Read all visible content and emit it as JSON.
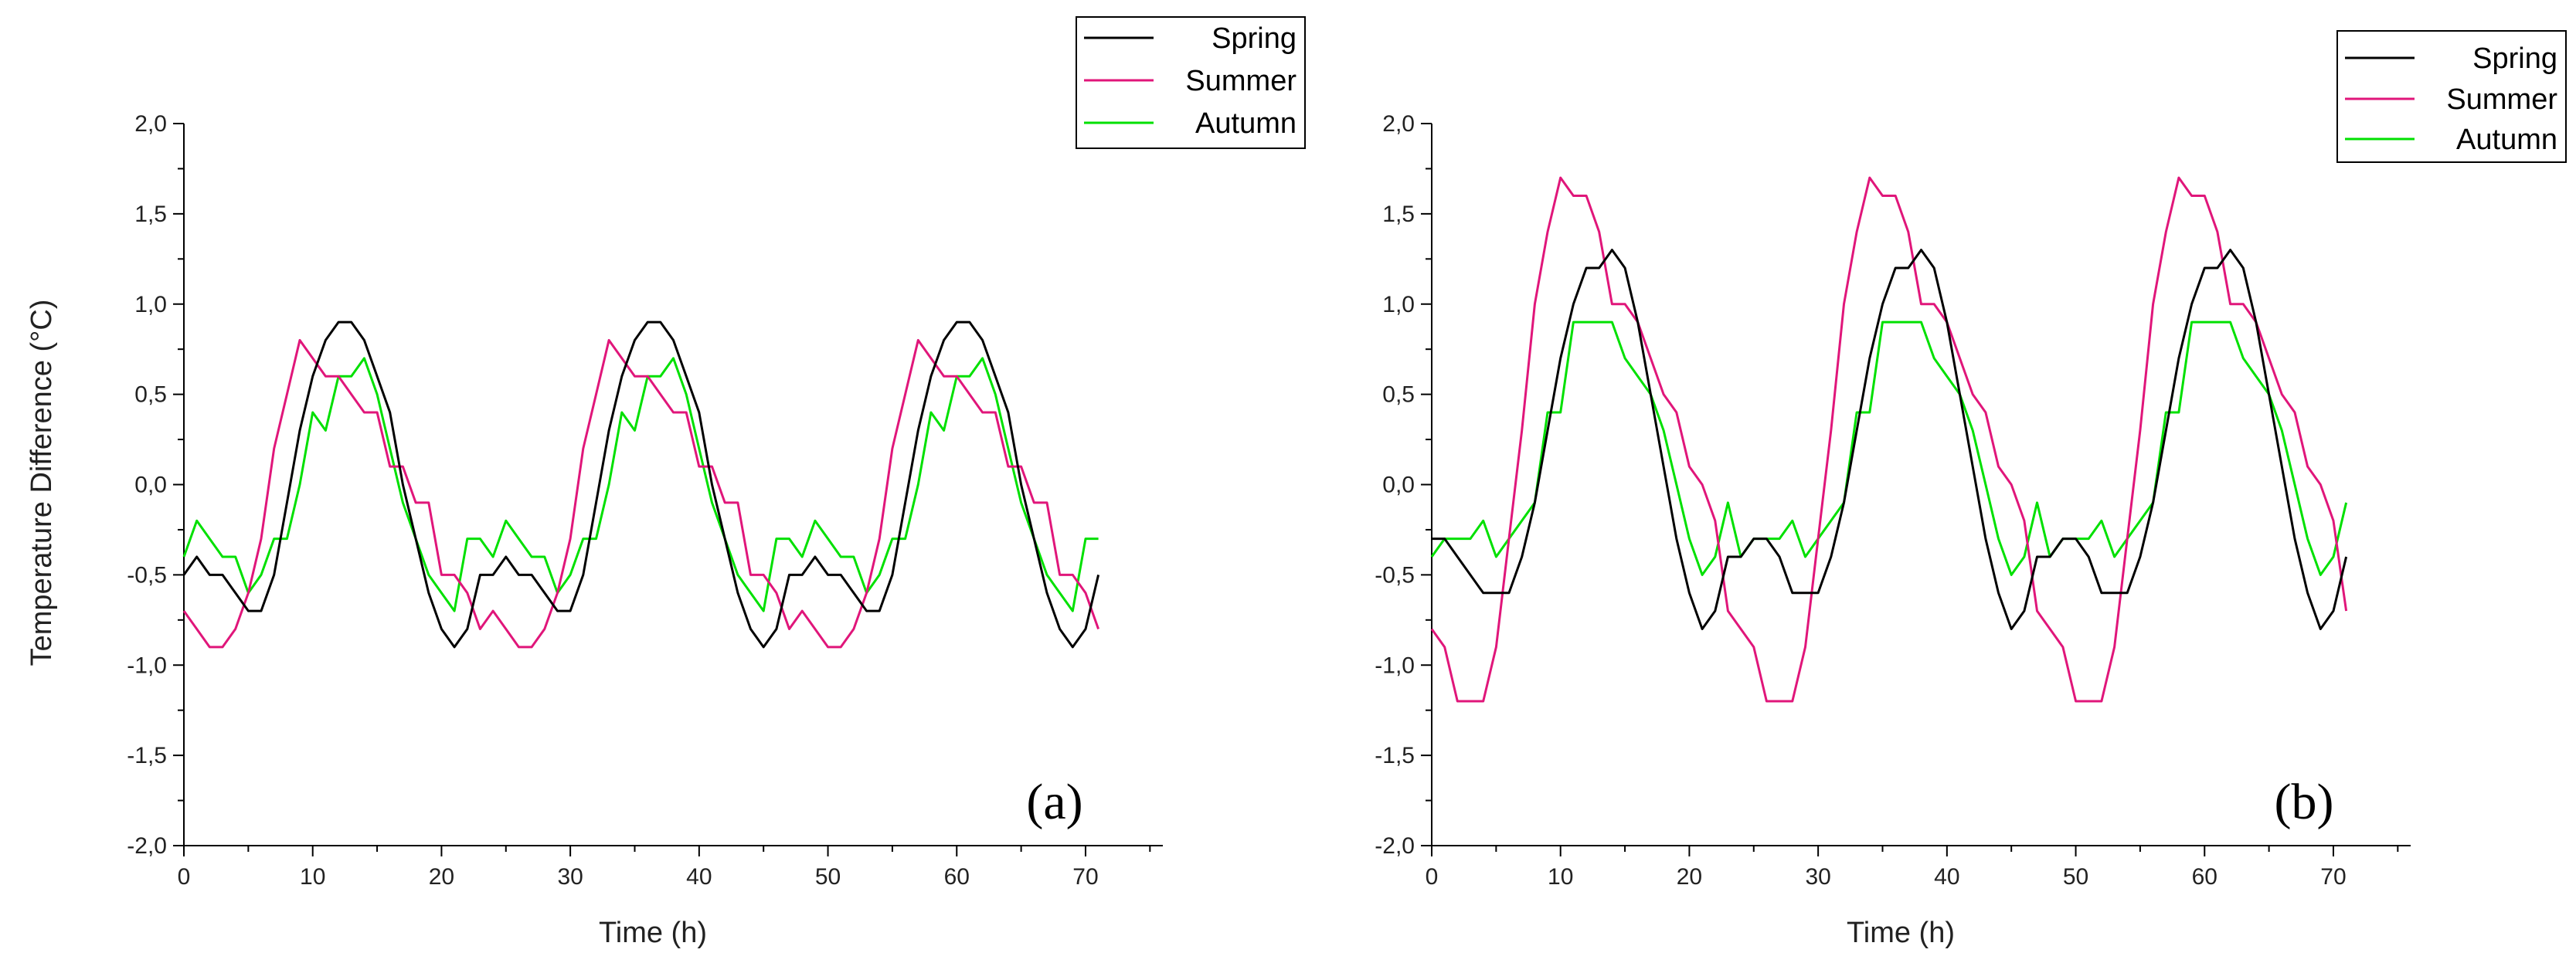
{
  "colors": {
    "spring": "#000000",
    "summer": "#e0167a",
    "autumn": "#00e000",
    "axis": "#000000"
  },
  "chart_data": [
    {
      "type": "line",
      "panel_label": "(a)",
      "xlabel": "Time (h)",
      "ylabel": "Temperature Difference (°C)",
      "xlim": [
        0,
        76
      ],
      "ylim": [
        -2.0,
        2.0
      ],
      "x_ticks": [
        0,
        10,
        20,
        30,
        40,
        50,
        60,
        70
      ],
      "x_tick_labels": [
        "0",
        "10",
        "20",
        "30",
        "40",
        "50",
        "60",
        "70"
      ],
      "y_ticks": [
        -2.0,
        -1.5,
        -1.0,
        -0.5,
        0.0,
        0.5,
        1.0,
        1.5,
        2.0
      ],
      "y_tick_labels": [
        "-2,0",
        "-1,5",
        "-1,0",
        "-0,5",
        "0,0",
        "0,5",
        "1,0",
        "1,5",
        "2,0"
      ],
      "legend": [
        "Spring",
        "Summer",
        "Autumn"
      ],
      "x": [
        0,
        1,
        2,
        3,
        4,
        5,
        6,
        7,
        8,
        9,
        10,
        11,
        12,
        13,
        14,
        15,
        16,
        17,
        18,
        19,
        20,
        21,
        22,
        23,
        24,
        25,
        26,
        27,
        28,
        29,
        30,
        31,
        32,
        33,
        34,
        35,
        36,
        37,
        38,
        39,
        40,
        41,
        42,
        43,
        44,
        45,
        46,
        47,
        48,
        49,
        50,
        51,
        52,
        53,
        54,
        55,
        56,
        57,
        58,
        59,
        60,
        61,
        62,
        63,
        64,
        65,
        66,
        67,
        68,
        69,
        70,
        71
      ],
      "series": [
        {
          "name": "Spring",
          "key": "spring",
          "values": [
            -0.5,
            -0.4,
            -0.5,
            -0.5,
            -0.6,
            -0.7,
            -0.7,
            -0.5,
            -0.1,
            0.3,
            0.6,
            0.8,
            0.9,
            0.9,
            0.8,
            0.6,
            0.4,
            0.0,
            -0.3,
            -0.6,
            -0.8,
            -0.9,
            -0.8,
            -0.5,
            -0.5,
            -0.4,
            -0.5,
            -0.5,
            -0.6,
            -0.7,
            -0.7,
            -0.5,
            -0.1,
            0.3,
            0.6,
            0.8,
            0.9,
            0.9,
            0.8,
            0.6,
            0.4,
            0.0,
            -0.3,
            -0.6,
            -0.8,
            -0.9,
            -0.8,
            -0.5,
            -0.5,
            -0.4,
            -0.5,
            -0.5,
            -0.6,
            -0.7,
            -0.7,
            -0.5,
            -0.1,
            0.3,
            0.6,
            0.8,
            0.9,
            0.9,
            0.8,
            0.6,
            0.4,
            0.0,
            -0.3,
            -0.6,
            -0.8,
            -0.9,
            -0.8,
            -0.5
          ]
        },
        {
          "name": "Summer",
          "key": "summer",
          "values": [
            -0.7,
            -0.8,
            -0.9,
            -0.9,
            -0.8,
            -0.6,
            -0.3,
            0.2,
            0.5,
            0.8,
            0.7,
            0.6,
            0.6,
            0.5,
            0.4,
            0.4,
            0.1,
            0.1,
            -0.1,
            -0.1,
            -0.5,
            -0.5,
            -0.6,
            -0.8,
            -0.7,
            -0.8,
            -0.9,
            -0.9,
            -0.8,
            -0.6,
            -0.3,
            0.2,
            0.5,
            0.8,
            0.7,
            0.6,
            0.6,
            0.5,
            0.4,
            0.4,
            0.1,
            0.1,
            -0.1,
            -0.1,
            -0.5,
            -0.5,
            -0.6,
            -0.8,
            -0.7,
            -0.8,
            -0.9,
            -0.9,
            -0.8,
            -0.6,
            -0.3,
            0.2,
            0.5,
            0.8,
            0.7,
            0.6,
            0.6,
            0.5,
            0.4,
            0.4,
            0.1,
            0.1,
            -0.1,
            -0.1,
            -0.5,
            -0.5,
            -0.6,
            -0.8
          ]
        },
        {
          "name": "Autumn",
          "key": "autumn",
          "values": [
            -0.4,
            -0.2,
            -0.3,
            -0.4,
            -0.4,
            -0.6,
            -0.5,
            -0.3,
            -0.3,
            0.0,
            0.4,
            0.3,
            0.6,
            0.6,
            0.7,
            0.5,
            0.2,
            -0.1,
            -0.3,
            -0.5,
            -0.6,
            -0.7,
            -0.3,
            -0.3,
            -0.4,
            -0.2,
            -0.3,
            -0.4,
            -0.4,
            -0.6,
            -0.5,
            -0.3,
            -0.3,
            0.0,
            0.4,
            0.3,
            0.6,
            0.6,
            0.7,
            0.5,
            0.2,
            -0.1,
            -0.3,
            -0.5,
            -0.6,
            -0.7,
            -0.3,
            -0.3,
            -0.4,
            -0.2,
            -0.3,
            -0.4,
            -0.4,
            -0.6,
            -0.5,
            -0.3,
            -0.3,
            0.0,
            0.4,
            0.3,
            0.6,
            0.6,
            0.7,
            0.5,
            0.2,
            -0.1,
            -0.3,
            -0.5,
            -0.6,
            -0.7,
            -0.3,
            -0.3
          ]
        }
      ]
    },
    {
      "type": "line",
      "panel_label": "(b)",
      "xlabel": "Time (h)",
      "ylabel": "",
      "xlim": [
        0,
        76
      ],
      "ylim": [
        -2.0,
        2.0
      ],
      "x_ticks": [
        0,
        10,
        20,
        30,
        40,
        50,
        60,
        70
      ],
      "x_tick_labels": [
        "0",
        "10",
        "20",
        "30",
        "40",
        "50",
        "60",
        "70"
      ],
      "y_ticks": [
        -2.0,
        -1.5,
        -1.0,
        -0.5,
        0.0,
        0.5,
        1.0,
        1.5,
        2.0
      ],
      "y_tick_labels": [
        "-2,0",
        "-1,5",
        "-1,0",
        "-0,5",
        "0,0",
        "0,5",
        "1,0",
        "1,5",
        "2,0"
      ],
      "legend": [
        "Spring",
        "Summer",
        "Autumn"
      ],
      "x": [
        0,
        1,
        2,
        3,
        4,
        5,
        6,
        7,
        8,
        9,
        10,
        11,
        12,
        13,
        14,
        15,
        16,
        17,
        18,
        19,
        20,
        21,
        22,
        23,
        24,
        25,
        26,
        27,
        28,
        29,
        30,
        31,
        32,
        33,
        34,
        35,
        36,
        37,
        38,
        39,
        40,
        41,
        42,
        43,
        44,
        45,
        46,
        47,
        48,
        49,
        50,
        51,
        52,
        53,
        54,
        55,
        56,
        57,
        58,
        59,
        60,
        61,
        62,
        63,
        64,
        65,
        66,
        67,
        68,
        69,
        70,
        71
      ],
      "series": [
        {
          "name": "Spring",
          "key": "spring",
          "values": [
            -0.3,
            -0.3,
            -0.4,
            -0.5,
            -0.6,
            -0.6,
            -0.6,
            -0.4,
            -0.1,
            0.3,
            0.7,
            1.0,
            1.2,
            1.2,
            1.3,
            1.2,
            0.9,
            0.5,
            0.1,
            -0.3,
            -0.6,
            -0.8,
            -0.7,
            -0.4,
            -0.4,
            -0.3,
            -0.3,
            -0.4,
            -0.6,
            -0.6,
            -0.6,
            -0.4,
            -0.1,
            0.3,
            0.7,
            1.0,
            1.2,
            1.2,
            1.3,
            1.2,
            0.9,
            0.5,
            0.1,
            -0.3,
            -0.6,
            -0.8,
            -0.7,
            -0.4,
            -0.4,
            -0.3,
            -0.3,
            -0.4,
            -0.6,
            -0.6,
            -0.6,
            -0.4,
            -0.1,
            0.3,
            0.7,
            1.0,
            1.2,
            1.2,
            1.3,
            1.2,
            0.9,
            0.5,
            0.1,
            -0.3,
            -0.6,
            -0.8,
            -0.7,
            -0.4
          ]
        },
        {
          "name": "Summer",
          "key": "summer",
          "values": [
            -0.8,
            -0.9,
            -1.2,
            -1.2,
            -1.2,
            -0.9,
            -0.3,
            0.3,
            1.0,
            1.4,
            1.7,
            1.6,
            1.6,
            1.4,
            1.0,
            1.0,
            0.9,
            0.7,
            0.5,
            0.4,
            0.1,
            0.0,
            -0.2,
            -0.7,
            -0.8,
            -0.9,
            -1.2,
            -1.2,
            -1.2,
            -0.9,
            -0.3,
            0.3,
            1.0,
            1.4,
            1.7,
            1.6,
            1.6,
            1.4,
            1.0,
            1.0,
            0.9,
            0.7,
            0.5,
            0.4,
            0.1,
            0.0,
            -0.2,
            -0.7,
            -0.8,
            -0.9,
            -1.2,
            -1.2,
            -1.2,
            -0.9,
            -0.3,
            0.3,
            1.0,
            1.4,
            1.7,
            1.6,
            1.6,
            1.4,
            1.0,
            1.0,
            0.9,
            0.7,
            0.5,
            0.4,
            0.1,
            0.0,
            -0.2,
            -0.7
          ]
        },
        {
          "name": "Autumn",
          "key": "autumn",
          "values": [
            -0.4,
            -0.3,
            -0.3,
            -0.3,
            -0.2,
            -0.4,
            -0.3,
            -0.2,
            -0.1,
            0.4,
            0.4,
            0.9,
            0.9,
            0.9,
            0.9,
            0.7,
            0.6,
            0.5,
            0.3,
            0.0,
            -0.3,
            -0.5,
            -0.4,
            -0.1,
            -0.4,
            -0.3,
            -0.3,
            -0.3,
            -0.2,
            -0.4,
            -0.3,
            -0.2,
            -0.1,
            0.4,
            0.4,
            0.9,
            0.9,
            0.9,
            0.9,
            0.7,
            0.6,
            0.5,
            0.3,
            0.0,
            -0.3,
            -0.5,
            -0.4,
            -0.1,
            -0.4,
            -0.3,
            -0.3,
            -0.3,
            -0.2,
            -0.4,
            -0.3,
            -0.2,
            -0.1,
            0.4,
            0.4,
            0.9,
            0.9,
            0.9,
            0.9,
            0.7,
            0.6,
            0.5,
            0.3,
            0.0,
            -0.3,
            -0.5,
            -0.4,
            -0.1
          ]
        }
      ]
    }
  ]
}
